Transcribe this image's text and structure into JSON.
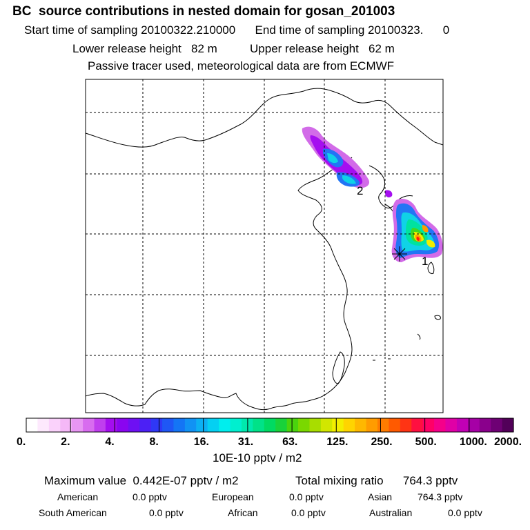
{
  "header": {
    "title": "BC  source contributions in nested domain for gosan_201003",
    "line1": "Start time of sampling 20100322.210000      End time of sampling 20100323.      0",
    "line2": "Lower release height   82 m          Upper release height   62 m",
    "line3": "Passive tracer used, meteorological data are from ECMWF"
  },
  "chart_data": {
    "type": "heatmap",
    "colorbar": {
      "tick_labels": [
        "0.",
        "2.",
        "4.",
        "8.",
        "16.",
        "31.",
        "63.",
        "125.",
        "250.",
        "500.",
        "1000.",
        "2000."
      ],
      "unit_label": "10E-10 pptv / m2",
      "colors": [
        "#ffffff",
        "#fde9fd",
        "#fad2fb",
        "#f5b8f7",
        "#e896f3",
        "#d86cef",
        "#c03eee",
        "#a40eef",
        "#8a05f0",
        "#6e10f3",
        "#4c20f5",
        "#2f38f6",
        "#1f57f5",
        "#1475f5",
        "#1192f4",
        "#0cb0f3",
        "#05d0f2",
        "#00eeee",
        "#00efcf",
        "#00e9ad",
        "#00e288",
        "#00da62",
        "#19d23a",
        "#4ad40d",
        "#7ad800",
        "#a8dd00",
        "#d2e600",
        "#f3ee00",
        "#ffd400",
        "#ffb800",
        "#ff9c00",
        "#ff7c00",
        "#ff5a00",
        "#ff3414",
        "#ff1040",
        "#ff0066",
        "#f5008a",
        "#e000a6",
        "#c200b5",
        "#a600a6",
        "#8a008c",
        "#6e0074",
        "#520059"
      ],
      "plume_colors": {
        "magenta": "#d26be8",
        "violet": "#a50ef0",
        "blue": "#2275f5",
        "cyan": "#10d2e6",
        "teal": "#00e2a0",
        "green": "#40d820",
        "yellow": "#f0ee00",
        "orange": "#ff9a00",
        "red": "#ff1a10"
      }
    },
    "receptor_labels": [
      "2",
      "1"
    ],
    "stats": {
      "max_value": "Maximum value  0.442E-07 pptv / m2",
      "total": "Total mixing ratio      764.3 pptv",
      "regions": [
        {
          "name": "American",
          "value": "0.0 pptv"
        },
        {
          "name": "European",
          "value": "0.0 pptv"
        },
        {
          "name": "Asian",
          "value": "764.3 pptv"
        },
        {
          "name": "South American",
          "value": "0.0 pptv"
        },
        {
          "name": "African",
          "value": "0.0 pptv"
        },
        {
          "name": "Australian",
          "value": "0.0 pptv"
        }
      ]
    }
  }
}
